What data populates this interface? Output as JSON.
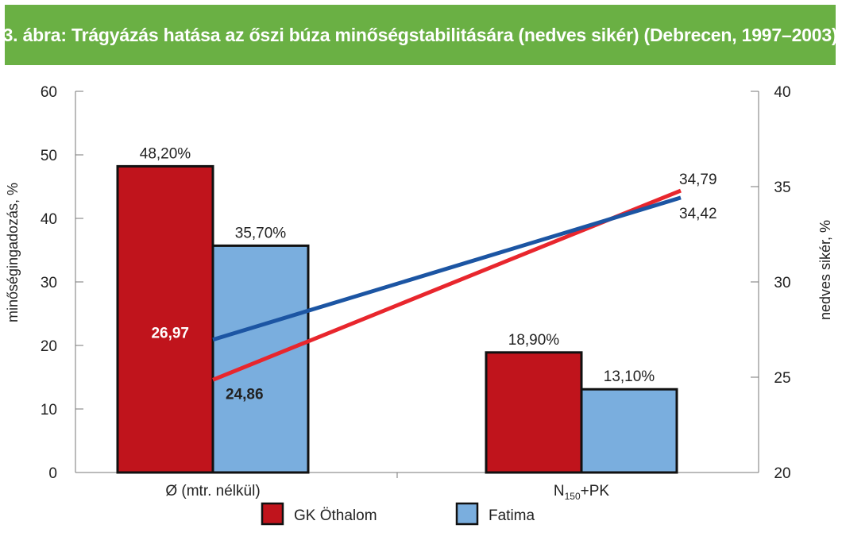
{
  "title": "3. ábra: Trágyázás hatása az őszi búza minőségstabilitására (nedves sikér) (Debrecen, 1997–2003)",
  "colors": {
    "banner": "#6ab044",
    "gk_othalom": "#c0141c",
    "fatima": "#7aaede",
    "line_red": "#e8262d",
    "line_blue": "#1c55a3"
  },
  "chart_data": {
    "type": "bar",
    "categories": [
      "Ø (mtr. nélkül)",
      "N150+PK"
    ],
    "category_label_parts": [
      {
        "main": "Ø (mtr. nélkül)",
        "sub": "",
        "tail": ""
      },
      {
        "main": "N",
        "sub": "150",
        "tail": "+PK"
      }
    ],
    "series": [
      {
        "name": "GK Öthalom",
        "values": [
          48.2,
          18.9
        ],
        "labels": [
          "48,20%",
          "18,90%"
        ],
        "axis": "left"
      },
      {
        "name": "Fatima",
        "values": [
          35.7,
          13.1
        ],
        "labels": [
          "35,70%",
          "13,10%"
        ],
        "axis": "left"
      }
    ],
    "lines": [
      {
        "series": "GK Öthalom",
        "axis": "right",
        "values": [
          24.86,
          34.79
        ],
        "labels": [
          "24,86",
          "34,79"
        ]
      },
      {
        "series": "Fatima",
        "axis": "right",
        "values": [
          26.97,
          34.42
        ],
        "labels": [
          "26,97",
          "34,42"
        ]
      }
    ],
    "ylabel": "minőségingadozás, %",
    "ylabel_right": "nedves sikér, %",
    "ylim": [
      0,
      60
    ],
    "ylim_right": [
      20,
      40
    ],
    "yticks": [
      "0",
      "10",
      "20",
      "30",
      "40",
      "50",
      "60"
    ],
    "yticks_right": [
      "20",
      "25",
      "30",
      "35",
      "40"
    ],
    "legend": "bottom",
    "grid": false
  }
}
